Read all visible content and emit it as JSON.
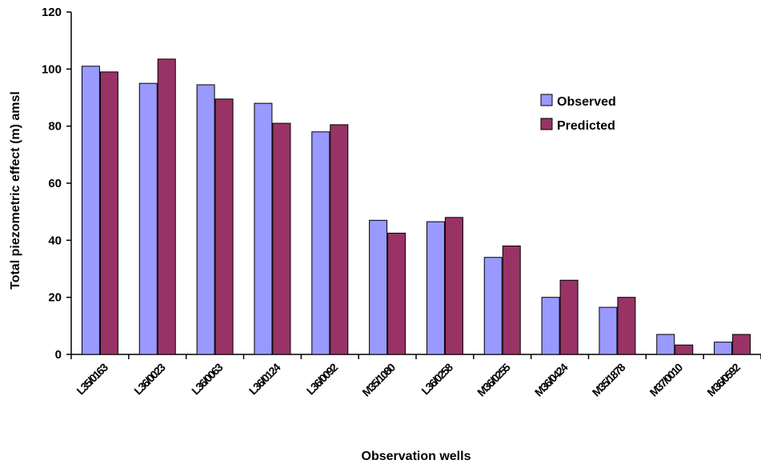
{
  "chart_data": {
    "type": "bar",
    "title": "",
    "xlabel": "Observation wells",
    "ylabel": "Total piezometric effect (m) amsl",
    "ylim": [
      0,
      120
    ],
    "yticks": [
      0,
      20,
      40,
      60,
      80,
      100,
      120
    ],
    "grid": false,
    "legend_position": "right",
    "categories": [
      "L35/0163",
      "L36/0023",
      "L36/0063",
      "L36/0124",
      "L36/0092",
      "M35/1080",
      "L36/0258",
      "M36/0255",
      "M36/0424",
      "M35/1878",
      "M37/0010",
      "M36/0592"
    ],
    "series": [
      {
        "name": "Observed",
        "color": "#9999ff",
        "values": [
          101,
          95,
          94.5,
          88,
          78,
          47,
          46.5,
          34,
          20,
          16.5,
          7,
          4.3
        ]
      },
      {
        "name": "Predicted",
        "color": "#993366",
        "values": [
          99,
          103.5,
          89.5,
          81,
          80.5,
          42.5,
          48,
          38,
          26,
          20,
          3.3,
          7
        ]
      }
    ]
  }
}
